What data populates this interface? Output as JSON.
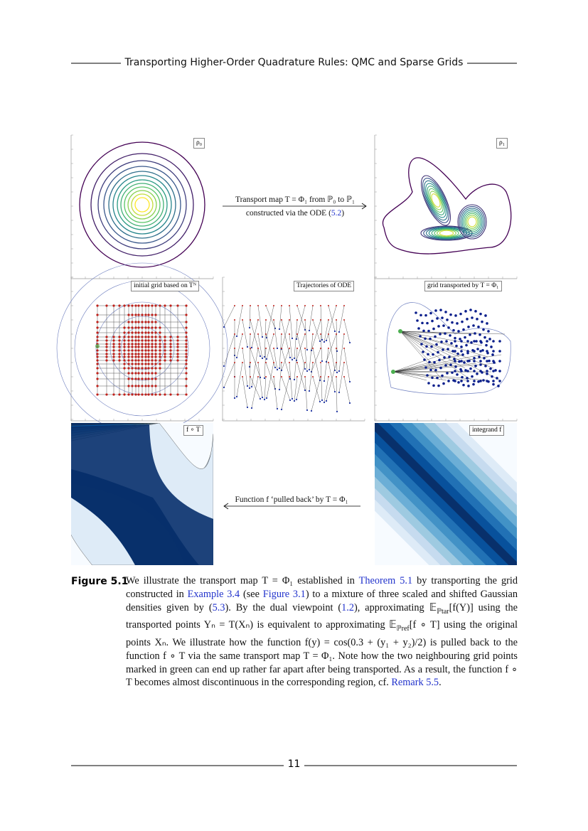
{
  "header": {
    "title": "Transporting Higher-Order Quadrature Rules: QMC and Sparse Grids"
  },
  "figure": {
    "legends": {
      "top_left": "ρ₀",
      "top_right": "ρ₁",
      "middle_left": "initial grid based on Tᴺ",
      "middle_center": "Trajectories of ODE",
      "middle_right": "grid transported by T = Φ₁",
      "bottom_left": "f ∘ T",
      "bottom_right": "integrand f"
    },
    "top_arrow": {
      "line1": "Transport map T = Φ₁ from ℙ₀ to ℙ₁",
      "line2": [
        {
          "text": "constructed via the ODE ("
        },
        {
          "text": "5.2",
          "link": true
        },
        {
          "text": ")"
        }
      ]
    },
    "bottom_arrow": {
      "line1": "Function f ‘pulled back’ by T = Φ₁"
    },
    "caption": {
      "label": "Figure 5.1",
      "segments": [
        {
          "text": "We illustrate the transport map T = Φ₁ established in "
        },
        {
          "text": "Theorem 5.1",
          "link": true
        },
        {
          "text": " by transporting the grid constructed in "
        },
        {
          "text": "Example 3.4",
          "link": true
        },
        {
          "text": " (see "
        },
        {
          "text": "Figure 3.1",
          "link": true
        },
        {
          "text": ") to a mixture of three scaled and shifted Gaussian densities given by ("
        },
        {
          "text": "5.3",
          "link": true
        },
        {
          "text": "). By the dual viewpoint ("
        },
        {
          "text": "1.2",
          "link": true
        },
        {
          "text": "), approximating 𝔼"
        },
        {
          "text": "ℙtar",
          "sub": true
        },
        {
          "text": "[f(Y)] using the transported points Yₙ = T(Xₙ) is equivalent to approximating 𝔼"
        },
        {
          "text": "ℙref",
          "sub": true
        },
        {
          "text": "[f ∘ T] using the original points Xₙ. We illustrate how the function f(y) = cos(0.3 + (y₁ + y₂)/2) is pulled back to the function f ∘ T via the same transport map T = Φ₁. Note how the two neighbouring grid points marked in green can end up rather far apart after being transported. As a result, the function f ∘ T becomes almost discontinuous in the corresponding region, cf. "
        },
        {
          "text": "Remark 5.5",
          "link": true
        },
        {
          "text": "."
        }
      ]
    }
  },
  "footer": {
    "page": "11"
  }
}
